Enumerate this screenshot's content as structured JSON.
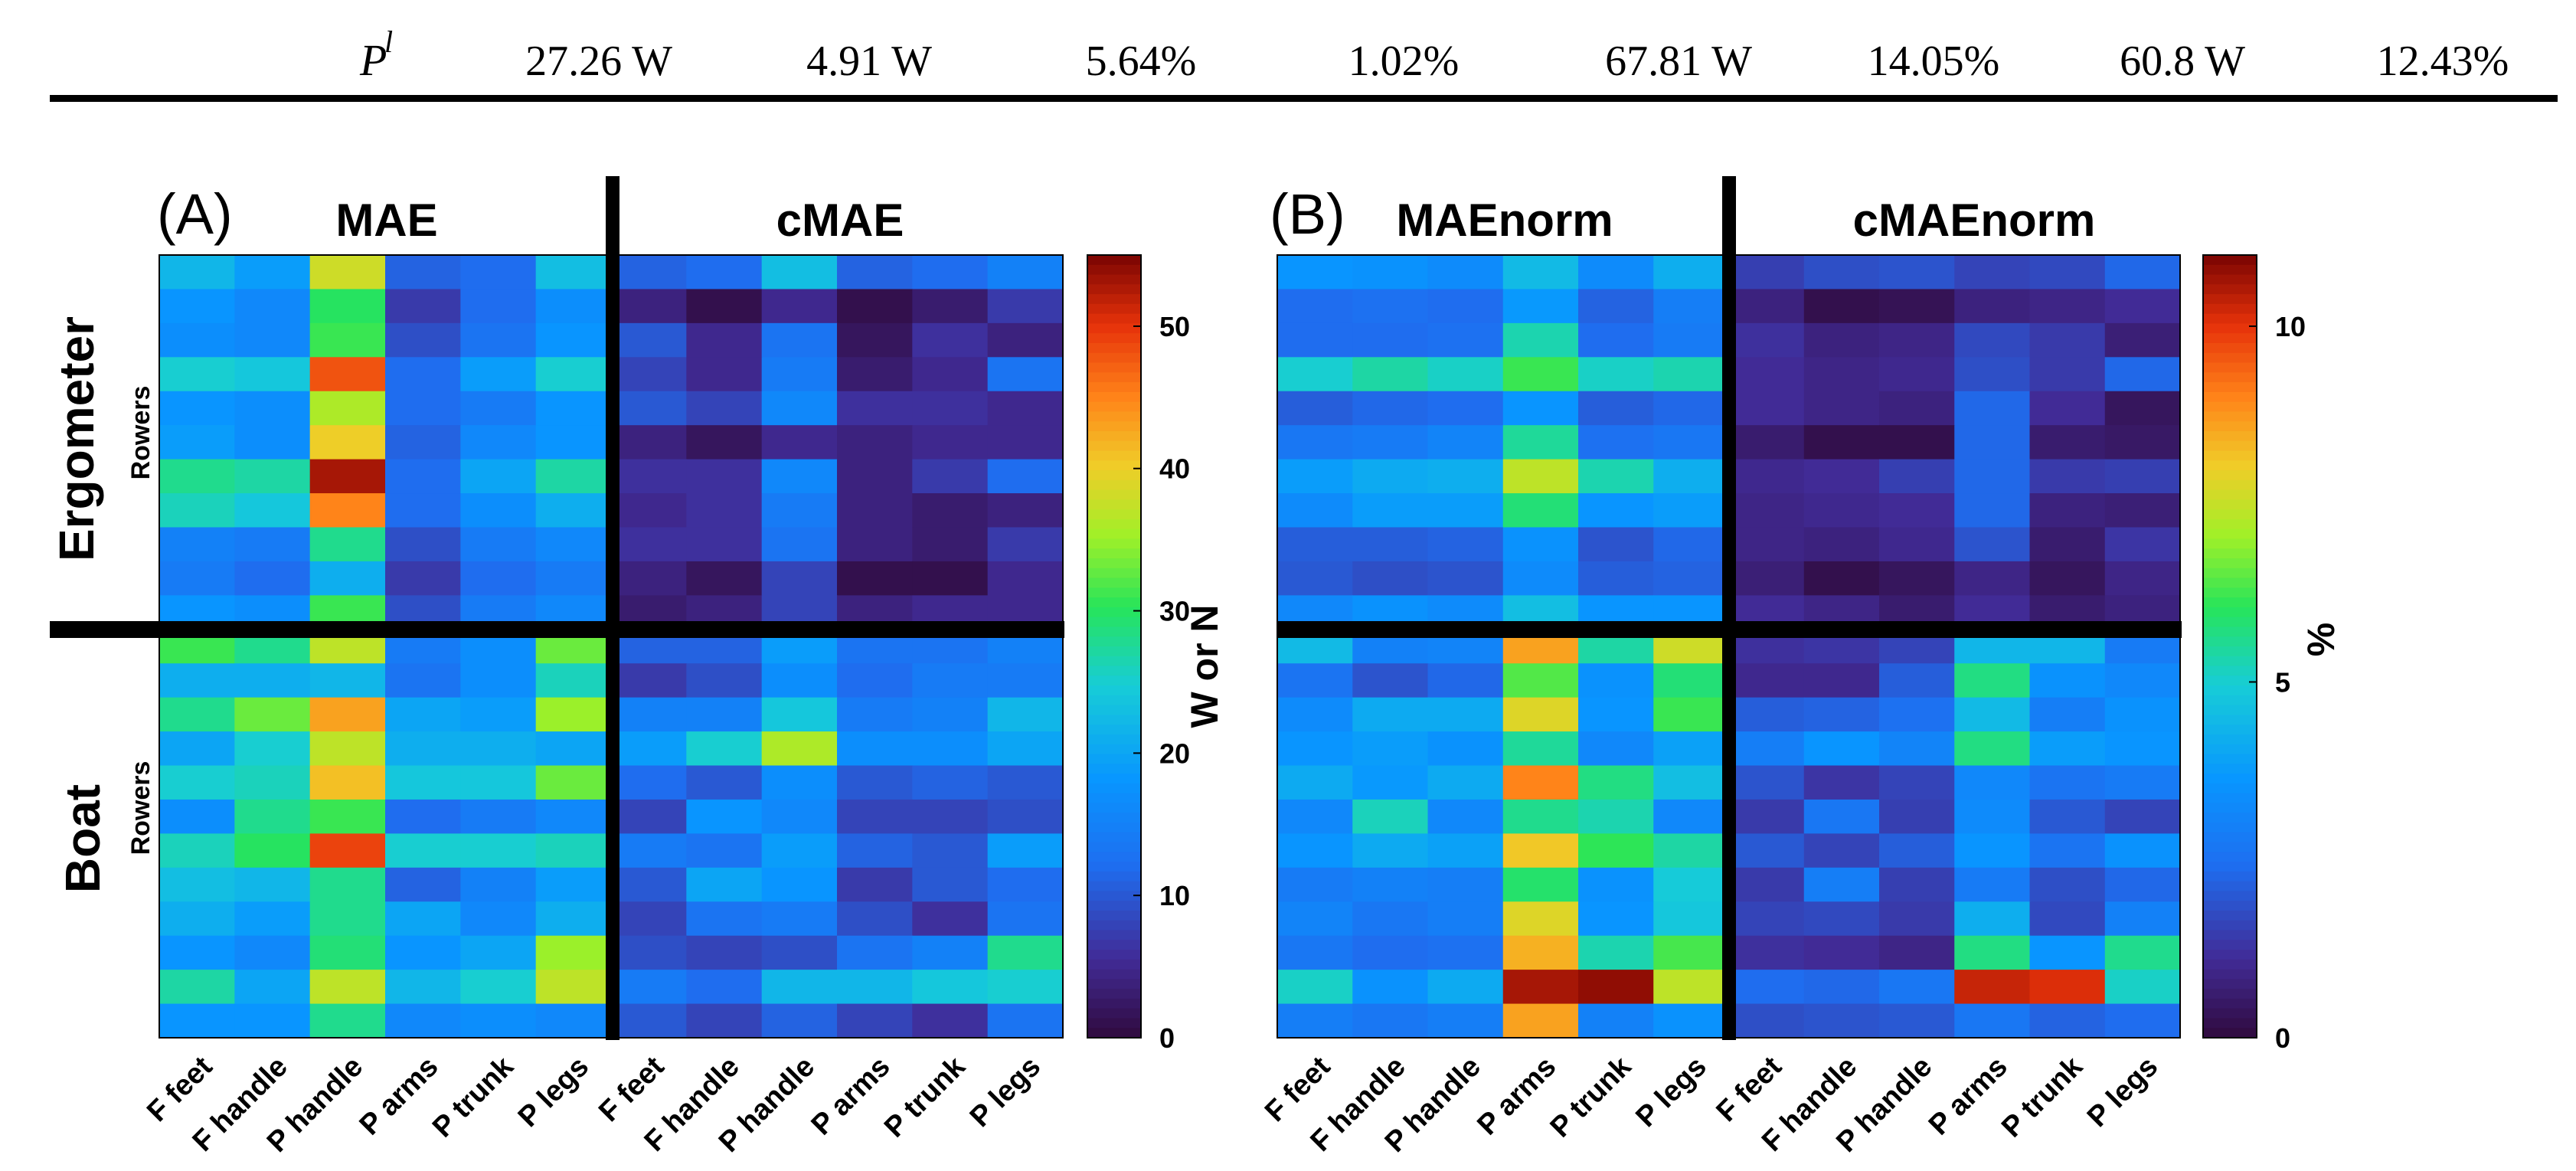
{
  "table_row": {
    "symbol": "P",
    "superscript": "l",
    "values": [
      "27.26 W",
      "4.91 W",
      "5.64%",
      "1.02%",
      "67.81 W",
      "14.05%",
      "60.8 W",
      "12.43%"
    ]
  },
  "chart_data": [
    {
      "type": "heatmap",
      "panel_label": "(A)",
      "titles": [
        "MAE",
        "cMAE"
      ],
      "row_group_labels": [
        "Ergometer",
        "Boat"
      ],
      "row_axis_label": "Rowers",
      "x_tick_labels": [
        "F feet",
        "F handle",
        "P handle",
        "P arms",
        "P trunk",
        "P legs",
        "F feet",
        "F handle",
        "P handle",
        "P arms",
        "P trunk",
        "P legs"
      ],
      "colorbar": {
        "label": "W or N",
        "range": [
          0,
          55
        ],
        "ticks": [
          0,
          10,
          20,
          30,
          40,
          50
        ]
      },
      "colormap": "jet-like",
      "values": [
        [
          22,
          19,
          38,
          11,
          12,
          23,
          11,
          12,
          23,
          11,
          12,
          15
        ],
        [
          18,
          16,
          30,
          7,
          12,
          17,
          4,
          1,
          5,
          1,
          3,
          7
        ],
        [
          17,
          16,
          31,
          9,
          13,
          18,
          10,
          5,
          13,
          2,
          6,
          4
        ],
        [
          25,
          24,
          48,
          12,
          19,
          25,
          8,
          5,
          14,
          3,
          5,
          13
        ],
        [
          18,
          17,
          36,
          12,
          14,
          18,
          10,
          8,
          16,
          6,
          6,
          5
        ],
        [
          19,
          17,
          40,
          11,
          16,
          18,
          4,
          2,
          5,
          4,
          5,
          5
        ],
        [
          28,
          27,
          53,
          12,
          20,
          27,
          6,
          6,
          16,
          4,
          7,
          12
        ],
        [
          26,
          24,
          45,
          12,
          17,
          21,
          5,
          6,
          14,
          4,
          3,
          4
        ],
        [
          15,
          14,
          28,
          9,
          14,
          16,
          6,
          6,
          13,
          4,
          3,
          7
        ],
        [
          14,
          12,
          21,
          7,
          12,
          14,
          4,
          2,
          8,
          1,
          1,
          5
        ],
        [
          18,
          17,
          31,
          9,
          14,
          16,
          3,
          4,
          8,
          4,
          5,
          5
        ],
        [
          31,
          28,
          37,
          14,
          17,
          33,
          11,
          11,
          19,
          13,
          13,
          15
        ],
        [
          21,
          21,
          22,
          13,
          17,
          26,
          7,
          9,
          17,
          12,
          14,
          14
        ],
        [
          28,
          33,
          43,
          20,
          19,
          35,
          15,
          15,
          24,
          14,
          15,
          22
        ],
        [
          20,
          25,
          37,
          21,
          21,
          20,
          19,
          25,
          36,
          17,
          17,
          20
        ],
        [
          25,
          26,
          41,
          24,
          24,
          33,
          12,
          10,
          17,
          10,
          11,
          10
        ],
        [
          17,
          28,
          31,
          12,
          14,
          16,
          8,
          18,
          16,
          8,
          8,
          9
        ],
        [
          26,
          30,
          49,
          25,
          25,
          26,
          14,
          13,
          19,
          11,
          10,
          19
        ],
        [
          23,
          22,
          28,
          11,
          15,
          19,
          10,
          20,
          18,
          7,
          10,
          12
        ],
        [
          21,
          19,
          28,
          20,
          16,
          21,
          8,
          13,
          14,
          9,
          6,
          13
        ],
        [
          18,
          16,
          29,
          18,
          20,
          35,
          9,
          8,
          9,
          13,
          15,
          28
        ],
        [
          27,
          20,
          37,
          22,
          25,
          37,
          14,
          12,
          22,
          22,
          24,
          25
        ],
        [
          18,
          18,
          28,
          16,
          17,
          16,
          10,
          8,
          11,
          8,
          6,
          13
        ]
      ]
    },
    {
      "type": "heatmap",
      "panel_label": "(B)",
      "titles": [
        "MAEnorm",
        "cMAEnorm"
      ],
      "row_axis_label": "",
      "x_tick_labels": [
        "F feet",
        "F handle",
        "P handle",
        "P arms",
        "P trunk",
        "P legs",
        "F feet",
        "F handle",
        "P handle",
        "P arms",
        "P trunk",
        "P legs"
      ],
      "colorbar": {
        "label": "%",
        "range": [
          0,
          11
        ],
        "ticks": [
          0,
          5,
          10
        ]
      },
      "colormap": "jet-like",
      "values": [
        [
          3.6,
          3.5,
          3.3,
          4.5,
          3.3,
          4.2,
          1.5,
          1.8,
          1.9,
          1.6,
          1.7,
          2.3
        ],
        [
          2.4,
          2.5,
          2.4,
          3.7,
          2.2,
          2.9,
          0.8,
          0.2,
          0.3,
          0.8,
          0.9,
          1.1
        ],
        [
          2.4,
          2.4,
          2.5,
          5.3,
          2.4,
          2.8,
          1.2,
          0.8,
          0.9,
          1.7,
          1.4,
          0.7
        ],
        [
          5.0,
          5.4,
          5.1,
          6.2,
          5.1,
          5.3,
          1.1,
          0.9,
          1.0,
          1.8,
          1.4,
          2.3
        ],
        [
          2.1,
          2.3,
          2.4,
          3.6,
          2.1,
          2.3,
          1.1,
          0.9,
          0.8,
          2.3,
          1.1,
          0.4
        ],
        [
          2.7,
          2.8,
          3.1,
          5.5,
          2.5,
          2.7,
          0.6,
          0.2,
          0.2,
          2.3,
          0.6,
          0.5
        ],
        [
          3.8,
          4.1,
          4.2,
          7.4,
          5.3,
          4.2,
          1.0,
          1.1,
          1.5,
          2.3,
          1.4,
          1.5
        ],
        [
          3.3,
          3.8,
          3.8,
          5.8,
          3.6,
          3.8,
          0.9,
          1.0,
          1.1,
          2.3,
          0.8,
          0.7
        ],
        [
          2.1,
          2.1,
          2.2,
          3.5,
          1.9,
          2.3,
          0.9,
          0.8,
          1.0,
          1.9,
          0.6,
          1.3
        ],
        [
          2.0,
          1.8,
          1.9,
          3.3,
          2.1,
          2.2,
          0.7,
          0.2,
          0.4,
          0.9,
          0.4,
          0.9
        ],
        [
          3.2,
          3.5,
          3.3,
          4.6,
          3.6,
          3.6,
          1.1,
          0.9,
          0.6,
          1.1,
          0.6,
          0.8
        ],
        [
          4.5,
          3.0,
          3.1,
          8.6,
          5.4,
          7.6,
          1.2,
          1.3,
          1.6,
          4.4,
          4.4,
          2.8
        ],
        [
          2.6,
          1.9,
          2.3,
          6.4,
          3.5,
          5.8,
          1.0,
          1.0,
          2.1,
          5.7,
          3.5,
          3.2
        ],
        [
          3.3,
          4.1,
          4.1,
          7.8,
          3.6,
          6.2,
          2.1,
          2.2,
          2.5,
          4.5,
          2.9,
          3.5
        ],
        [
          3.6,
          3.8,
          3.5,
          5.5,
          3.2,
          3.9,
          2.9,
          3.6,
          3.1,
          5.7,
          3.8,
          3.6
        ],
        [
          4.1,
          3.7,
          4.1,
          9.0,
          5.7,
          4.6,
          1.9,
          1.3,
          1.6,
          3.2,
          2.6,
          2.8
        ],
        [
          3.2,
          5.2,
          3.2,
          5.6,
          5.3,
          3.2,
          1.4,
          2.7,
          1.5,
          3.3,
          2.0,
          1.6
        ],
        [
          3.6,
          4.1,
          3.9,
          8.1,
          6.1,
          5.4,
          2.0,
          1.6,
          2.1,
          3.6,
          2.6,
          3.5
        ],
        [
          2.8,
          3.0,
          2.9,
          5.9,
          3.5,
          4.9,
          1.4,
          2.9,
          1.5,
          2.8,
          1.8,
          2.3
        ],
        [
          3.1,
          2.7,
          2.9,
          7.8,
          3.6,
          4.8,
          1.6,
          1.7,
          1.4,
          4.2,
          1.7,
          3.0
        ],
        [
          2.7,
          2.4,
          2.5,
          8.4,
          5.3,
          6.3,
          1.2,
          1.1,
          0.9,
          5.7,
          3.6,
          5.6
        ],
        [
          5.1,
          3.5,
          4.1,
          10.6,
          10.8,
          7.4,
          2.4,
          2.3,
          2.7,
          10.3,
          10.1,
          5.1
        ],
        [
          2.9,
          2.7,
          2.9,
          8.6,
          3.0,
          3.5,
          1.8,
          1.9,
          2.0,
          2.7,
          2.2,
          2.4
        ]
      ]
    }
  ]
}
